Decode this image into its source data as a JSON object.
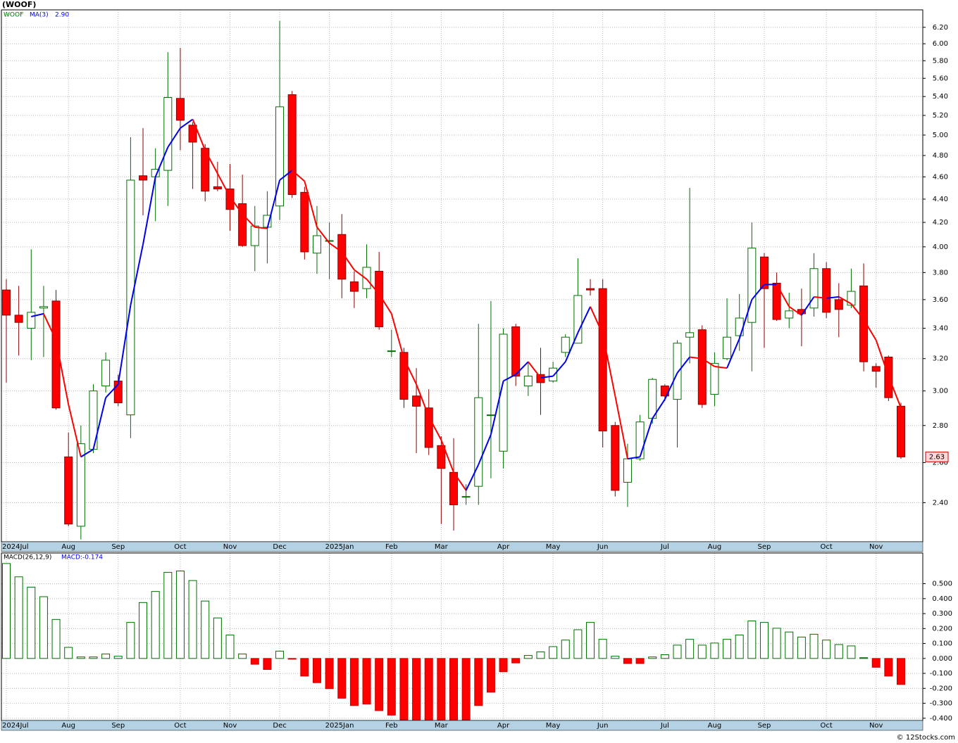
{
  "chart_data": [
    {
      "type": "candlestick",
      "title": "(WOOF)",
      "name": "WOOF",
      "categories": [
        "2024Jul",
        null,
        null,
        null,
        null,
        "Aug",
        null,
        null,
        null,
        "Sep",
        null,
        null,
        null,
        null,
        "Oct",
        null,
        null,
        null,
        "Nov",
        null,
        null,
        null,
        "Dec",
        null,
        null,
        null,
        "2025Jan",
        null,
        null,
        null,
        null,
        "Feb",
        null,
        null,
        null,
        "Mar",
        null,
        null,
        null,
        null,
        "Apr",
        null,
        null,
        null,
        "May",
        null,
        null,
        null,
        "Jun",
        null,
        null,
        null,
        null,
        "Jul",
        null,
        null,
        null,
        "Aug",
        null,
        null,
        null,
        "Sep",
        null,
        null,
        null,
        null,
        "Oct",
        null,
        null,
        null,
        "Nov",
        null,
        null
      ],
      "open": [
        3.67,
        3.49,
        3.4,
        3.54,
        3.59,
        2.63,
        2.29,
        2.67,
        3.03,
        3.06,
        2.86,
        4.61,
        4.6,
        4.66,
        5.38,
        5.1,
        4.87,
        4.51,
        4.49,
        4.36,
        4.01,
        4.16,
        4.34,
        5.42,
        4.46,
        3.95,
        4.05,
        4.1,
        3.73,
        3.68,
        3.81,
        3.25,
        3.24,
        2.97,
        2.9,
        2.69,
        2.55,
        2.43,
        2.48,
        2.86,
        2.66,
        3.41,
        3.03,
        3.1,
        3.06,
        3.24,
        3.3,
        3.68,
        3.68,
        2.8,
        2.5,
        2.62,
        2.84,
        3.03,
        2.95,
        3.34,
        3.39,
        2.98,
        3.2,
        3.35,
        3.44,
        3.92,
        3.72,
        3.47,
        3.53,
        3.54,
        3.83,
        3.6,
        3.56,
        3.7,
        3.15,
        3.21,
        2.91
      ],
      "high": [
        3.75,
        3.7,
        3.98,
        3.7,
        3.67,
        2.76,
        2.8,
        3.04,
        3.24,
        3.1,
        4.98,
        5.07,
        4.87,
        5.9,
        5.95,
        5.13,
        4.91,
        4.74,
        4.72,
        4.62,
        4.34,
        4.47,
        6.28,
        5.46,
        4.51,
        4.34,
        4.2,
        4.27,
        3.81,
        4.02,
        3.96,
        3.39,
        3.27,
        3.14,
        3.01,
        2.74,
        2.73,
        2.49,
        3.43,
        3.59,
        3.4,
        3.43,
        3.18,
        3.27,
        3.18,
        3.36,
        3.91,
        3.75,
        3.75,
        2.82,
        2.7,
        2.86,
        3.08,
        3.04,
        3.32,
        4.5,
        3.42,
        3.24,
        3.61,
        3.64,
        4.2,
        3.95,
        3.8,
        3.65,
        3.68,
        3.95,
        3.88,
        3.72,
        3.83,
        3.87,
        3.17,
        3.22,
        2.93
      ],
      "low": [
        3.05,
        3.22,
        3.19,
        3.21,
        2.89,
        2.29,
        2.23,
        2.65,
        2.99,
        2.91,
        2.73,
        4.26,
        4.21,
        4.34,
        4.85,
        4.49,
        4.38,
        4.47,
        4.13,
        4.0,
        3.81,
        3.87,
        4.22,
        4.41,
        3.9,
        3.79,
        3.75,
        3.61,
        3.54,
        3.61,
        3.39,
        3.21,
        2.9,
        2.65,
        2.64,
        2.3,
        2.27,
        2.39,
        2.39,
        2.52,
        2.57,
        3.03,
        2.97,
        2.86,
        3.05,
        3.21,
        3.3,
        3.63,
        2.68,
        2.43,
        2.38,
        2.61,
        2.81,
        2.94,
        2.68,
        3.17,
        2.9,
        2.91,
        3.19,
        3.25,
        3.12,
        3.27,
        3.45,
        3.4,
        3.28,
        3.48,
        3.47,
        3.34,
        3.54,
        3.12,
        3.02,
        2.94,
        2.62
      ],
      "close": [
        3.49,
        3.44,
        3.51,
        3.55,
        2.9,
        2.3,
        2.7,
        3.0,
        3.19,
        2.93,
        4.57,
        4.57,
        4.67,
        5.39,
        5.15,
        4.93,
        4.47,
        4.49,
        4.31,
        4.01,
        4.17,
        4.26,
        5.29,
        4.44,
        3.96,
        4.09,
        4.05,
        3.75,
        3.66,
        3.84,
        3.41,
        3.25,
        2.95,
        2.91,
        2.68,
        2.57,
        2.39,
        2.43,
        2.96,
        2.86,
        3.36,
        3.09,
        3.09,
        3.05,
        3.14,
        3.34,
        3.63,
        3.67,
        2.77,
        2.46,
        2.62,
        2.82,
        3.07,
        2.97,
        3.3,
        3.37,
        2.92,
        3.17,
        3.34,
        3.47,
        3.99,
        3.68,
        3.46,
        3.52,
        3.5,
        3.83,
        3.51,
        3.53,
        3.66,
        3.18,
        3.12,
        2.96,
        2.63
      ],
      "up_color": "#007000",
      "down_color": "#ff0000",
      "overlay": {
        "name": "MA(3)",
        "value_label": "2.90",
        "up_color": "#0000ee",
        "down_color": "#ff0000",
        "values": [
          null,
          null,
          3.48,
          3.5,
          3.32,
          2.92,
          2.63,
          2.67,
          2.96,
          3.04,
          3.56,
          4.02,
          4.6,
          4.88,
          5.07,
          5.16,
          4.85,
          4.63,
          4.42,
          4.27,
          4.16,
          4.15,
          4.57,
          4.66,
          4.56,
          4.16,
          4.03,
          3.96,
          3.82,
          3.75,
          3.64,
          3.5,
          3.2,
          3.04,
          2.85,
          2.72,
          2.55,
          2.46,
          2.59,
          2.75,
          3.06,
          3.1,
          3.18,
          3.08,
          3.09,
          3.18,
          3.37,
          3.55,
          3.36,
          2.97,
          2.62,
          2.63,
          2.84,
          2.95,
          3.11,
          3.21,
          3.2,
          3.15,
          3.14,
          3.33,
          3.6,
          3.71,
          3.71,
          3.55,
          3.49,
          3.62,
          3.61,
          3.62,
          3.57,
          3.46,
          3.32,
          3.09,
          2.9
        ]
      },
      "log_scale": true,
      "grid": true,
      "ylim": [
        2.22,
        6.42
      ],
      "yticks": [
        {
          "value": 2.4,
          "label": "2.40"
        },
        {
          "value": 2.6,
          "label": "2.60"
        },
        {
          "value": 2.8,
          "label": "2.80"
        },
        {
          "value": 3.0,
          "label": "3.00"
        },
        {
          "value": 3.2,
          "label": "3.20"
        },
        {
          "value": 3.4,
          "label": "3.40"
        },
        {
          "value": 3.6,
          "label": "3.60"
        },
        {
          "value": 3.8,
          "label": "3.80"
        },
        {
          "value": 4.0,
          "label": "4.00"
        },
        {
          "value": 4.2,
          "label": "4.20"
        },
        {
          "value": 4.4,
          "label": "4.40"
        },
        {
          "value": 4.6,
          "label": "4.60"
        },
        {
          "value": 4.8,
          "label": "4.80"
        },
        {
          "value": 5.0,
          "label": "5.00"
        },
        {
          "value": 5.2,
          "label": "5.20"
        },
        {
          "value": 5.4,
          "label": "5.40"
        },
        {
          "value": 5.6,
          "label": "5.60"
        },
        {
          "value": 5.8,
          "label": "5.80"
        },
        {
          "value": 6.0,
          "label": "6.00"
        },
        {
          "value": 6.2,
          "label": "6.20"
        }
      ]
    },
    {
      "type": "bar",
      "name": "MACD(26,12,9)",
      "legend": "MACD:-0.174",
      "values": [
        0.635,
        0.546,
        0.477,
        0.413,
        0.261,
        0.074,
        0.01,
        0.01,
        0.03,
        0.015,
        0.241,
        0.374,
        0.448,
        0.576,
        0.585,
        0.521,
        0.384,
        0.271,
        0.157,
        0.03,
        -0.039,
        -0.074,
        0.049,
        -0.005,
        -0.118,
        -0.162,
        -0.202,
        -0.266,
        -0.315,
        -0.305,
        -0.349,
        -0.379,
        -0.41,
        -0.43,
        -0.44,
        -0.44,
        -0.43,
        -0.41,
        -0.315,
        -0.226,
        -0.089,
        -0.03,
        0.02,
        0.044,
        0.079,
        0.123,
        0.192,
        0.241,
        0.128,
        0.015,
        -0.034,
        -0.034,
        0.01,
        0.025,
        0.089,
        0.128,
        0.089,
        0.103,
        0.128,
        0.157,
        0.251,
        0.241,
        0.202,
        0.177,
        0.143,
        0.162,
        0.123,
        0.093,
        0.084,
        0.005,
        -0.059,
        -0.118,
        -0.174
      ],
      "pos_color": "#007000",
      "neg_color": "#ff0000",
      "grid": true,
      "ylim": [
        -0.415,
        0.705
      ],
      "yticks": [
        {
          "value": -0.4,
          "label": "-0.400"
        },
        {
          "value": -0.3,
          "label": "-0.300"
        },
        {
          "value": -0.2,
          "label": "-0.200"
        },
        {
          "value": -0.1,
          "label": "-0.100"
        },
        {
          "value": 0,
          "label": "0.000"
        },
        {
          "value": 0.1,
          "label": "0.100"
        },
        {
          "value": 0.2,
          "label": "0.200"
        },
        {
          "value": 0.3,
          "label": "0.300"
        },
        {
          "value": 0.4,
          "label": "0.400"
        },
        {
          "value": 0.5,
          "label": "0.500"
        }
      ]
    }
  ],
  "footer": "© 12Stocks.com"
}
